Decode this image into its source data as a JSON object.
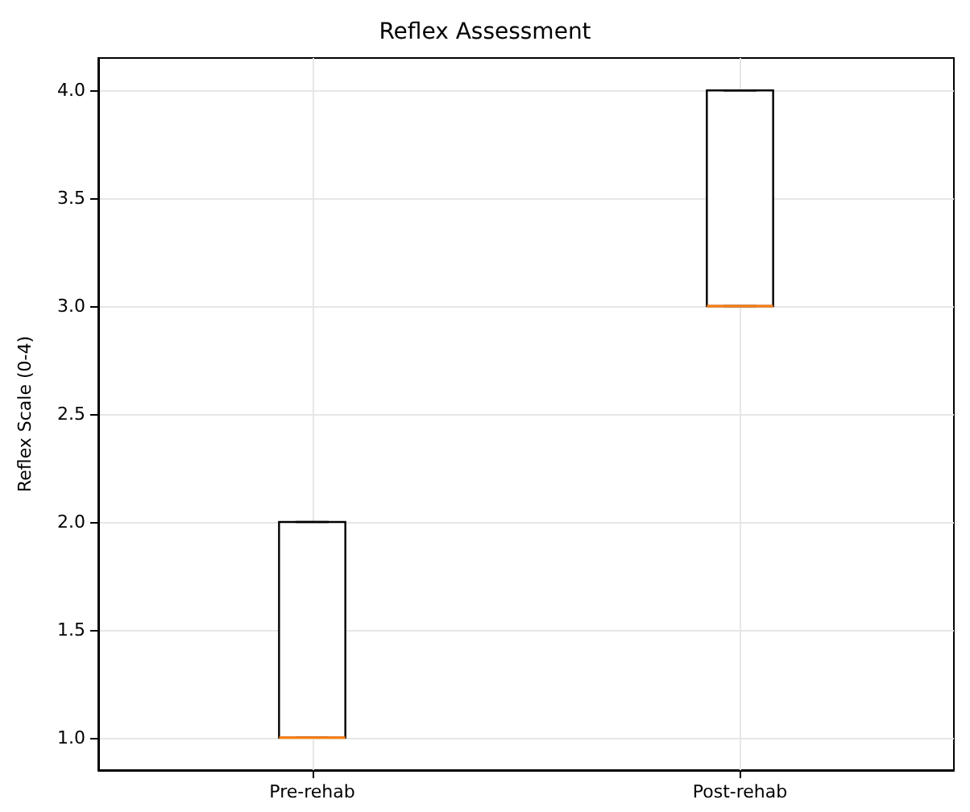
{
  "chart_data": {
    "type": "box",
    "title": "Reflex Assessment",
    "ylabel": "Reflex Scale (0-4)",
    "categories": [
      "Pre-rehab",
      "Post-rehab"
    ],
    "series": [
      {
        "color": "#000000",
        "boxes": [
          {
            "low": 1,
            "q1": 1,
            "median": 1,
            "q3": 2,
            "high": 2
          },
          {
            "low": 3,
            "q1": 3,
            "median": 3,
            "q3": 4,
            "high": 4
          }
        ]
      }
    ],
    "ylim": [
      0.85,
      4.15
    ],
    "yticks": [
      {
        "value": 1,
        "label": "1.0"
      },
      {
        "value": 1.5,
        "label": "1.5"
      },
      {
        "value": 2,
        "label": "2.0"
      },
      {
        "value": 2.5,
        "label": "2.5"
      },
      {
        "value": 3,
        "label": "3.0"
      },
      {
        "value": 3.5,
        "label": "3.5"
      },
      {
        "value": 4,
        "label": "4.0"
      }
    ],
    "grid": true
  }
}
